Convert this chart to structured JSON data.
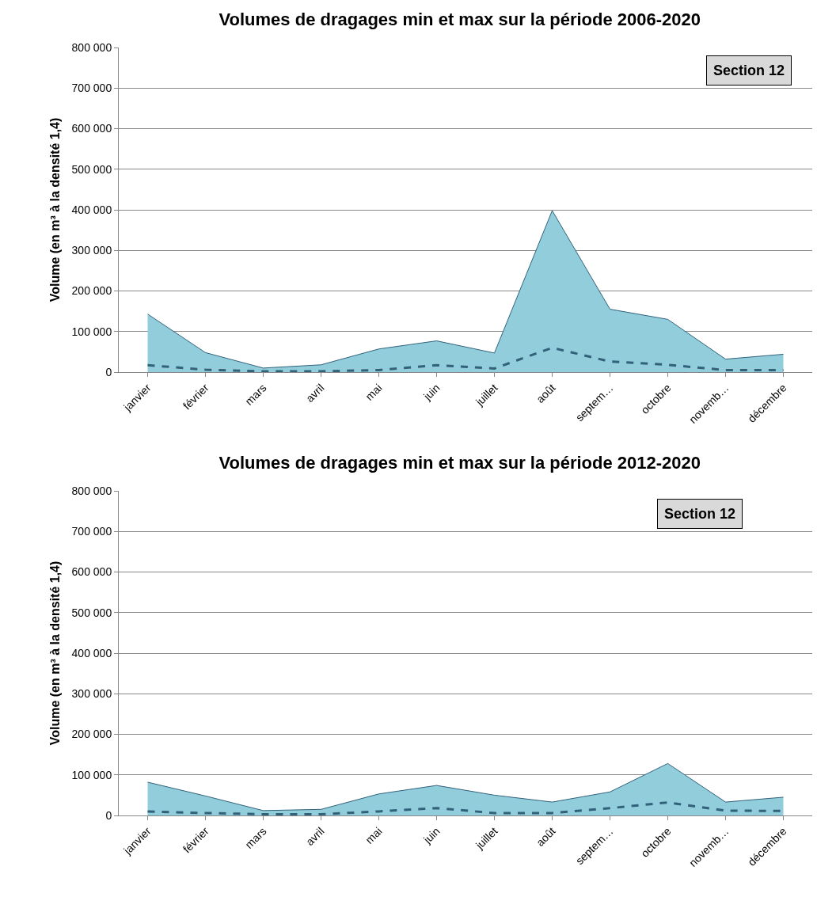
{
  "chart_data": [
    {
      "type": "area",
      "title": "Volumes de dragages min et max sur la période 2006-2020",
      "ylabel": "Volume (en m³ à la densité 1,4)",
      "annotations": [
        "Section 12"
      ],
      "categories": [
        "janvier",
        "février",
        "mars",
        "avril",
        "mai",
        "juin",
        "juillet",
        "août",
        "septem…",
        "octobre",
        "novemb…",
        "décembre"
      ],
      "series": [
        {
          "color": "#92cddc",
          "values": [
            143000,
            48000,
            10000,
            18000,
            57000,
            77000,
            47000,
            398000,
            155000,
            130000,
            32000,
            44000
          ]
        },
        {
          "type": "line",
          "color": "#31627a",
          "line_style": "dashed",
          "values": [
            17000,
            6000,
            2000,
            2000,
            5000,
            17000,
            9000,
            60000,
            26000,
            18000,
            5000,
            5000
          ]
        }
      ],
      "ylim": [
        0,
        800000
      ],
      "yticks": [
        {
          "value": 0,
          "label": "0"
        },
        {
          "value": 100000,
          "label": "100 000"
        },
        {
          "value": 200000,
          "label": "200 000"
        },
        {
          "value": 300000,
          "label": "300 000"
        },
        {
          "value": 400000,
          "label": "400 000"
        },
        {
          "value": 500000,
          "label": "500 000"
        },
        {
          "value": 600000,
          "label": "600 000"
        },
        {
          "value": 700000,
          "label": "700 000"
        },
        {
          "value": 800000,
          "label": "800 000"
        }
      ],
      "grid": "y",
      "legend": false
    },
    {
      "type": "area",
      "title": "Volumes de dragages min et max sur la période 2012-2020",
      "ylabel": "Volume (en m³ à la densité 1,4)",
      "annotations": [
        "Section 12"
      ],
      "categories": [
        "janvier",
        "février",
        "mars",
        "avril",
        "mai",
        "juin",
        "juillet",
        "août",
        "septem…",
        "octobre",
        "novemb…",
        "décembre"
      ],
      "series": [
        {
          "color": "#92cddc",
          "values": [
            82000,
            48000,
            12000,
            15000,
            53000,
            74000,
            50000,
            33000,
            58000,
            128000,
            33000,
            45000
          ]
        },
        {
          "type": "line",
          "color": "#31627a",
          "line_style": "dashed",
          "values": [
            10000,
            6000,
            3000,
            3000,
            10000,
            18000,
            6000,
            6000,
            18000,
            32000,
            12000,
            11000
          ]
        }
      ],
      "ylim": [
        0,
        800000
      ],
      "yticks": [
        {
          "value": 0,
          "label": "0"
        },
        {
          "value": 100000,
          "label": "100 000"
        },
        {
          "value": 200000,
          "label": "200 000"
        },
        {
          "value": 300000,
          "label": "300 000"
        },
        {
          "value": 400000,
          "label": "400 000"
        },
        {
          "value": 500000,
          "label": "500 000"
        },
        {
          "value": 600000,
          "label": "600 000"
        },
        {
          "value": 700000,
          "label": "700 000"
        },
        {
          "value": 800000,
          "label": "800 000"
        }
      ],
      "grid": "y",
      "legend": false
    }
  ]
}
